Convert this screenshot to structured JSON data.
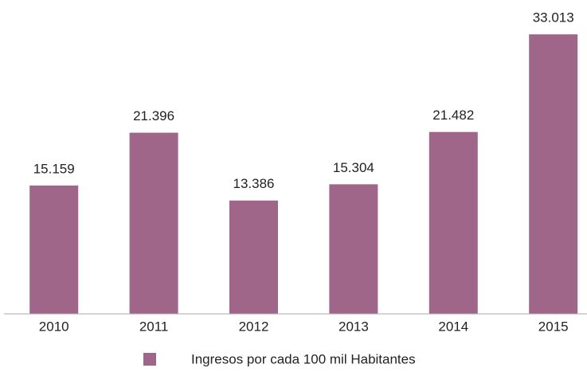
{
  "chart_data": {
    "type": "bar",
    "categories": [
      "2010",
      "2011",
      "2012",
      "2013",
      "2014",
      "2015"
    ],
    "series": [
      {
        "name": "Ingresos por cada 100 mil Habitantes",
        "color": "#a0668a",
        "values": [
          15.159,
          21.396,
          13.386,
          15.304,
          21.482,
          33.013
        ]
      }
    ],
    "ylim": [
      0,
      35
    ]
  }
}
